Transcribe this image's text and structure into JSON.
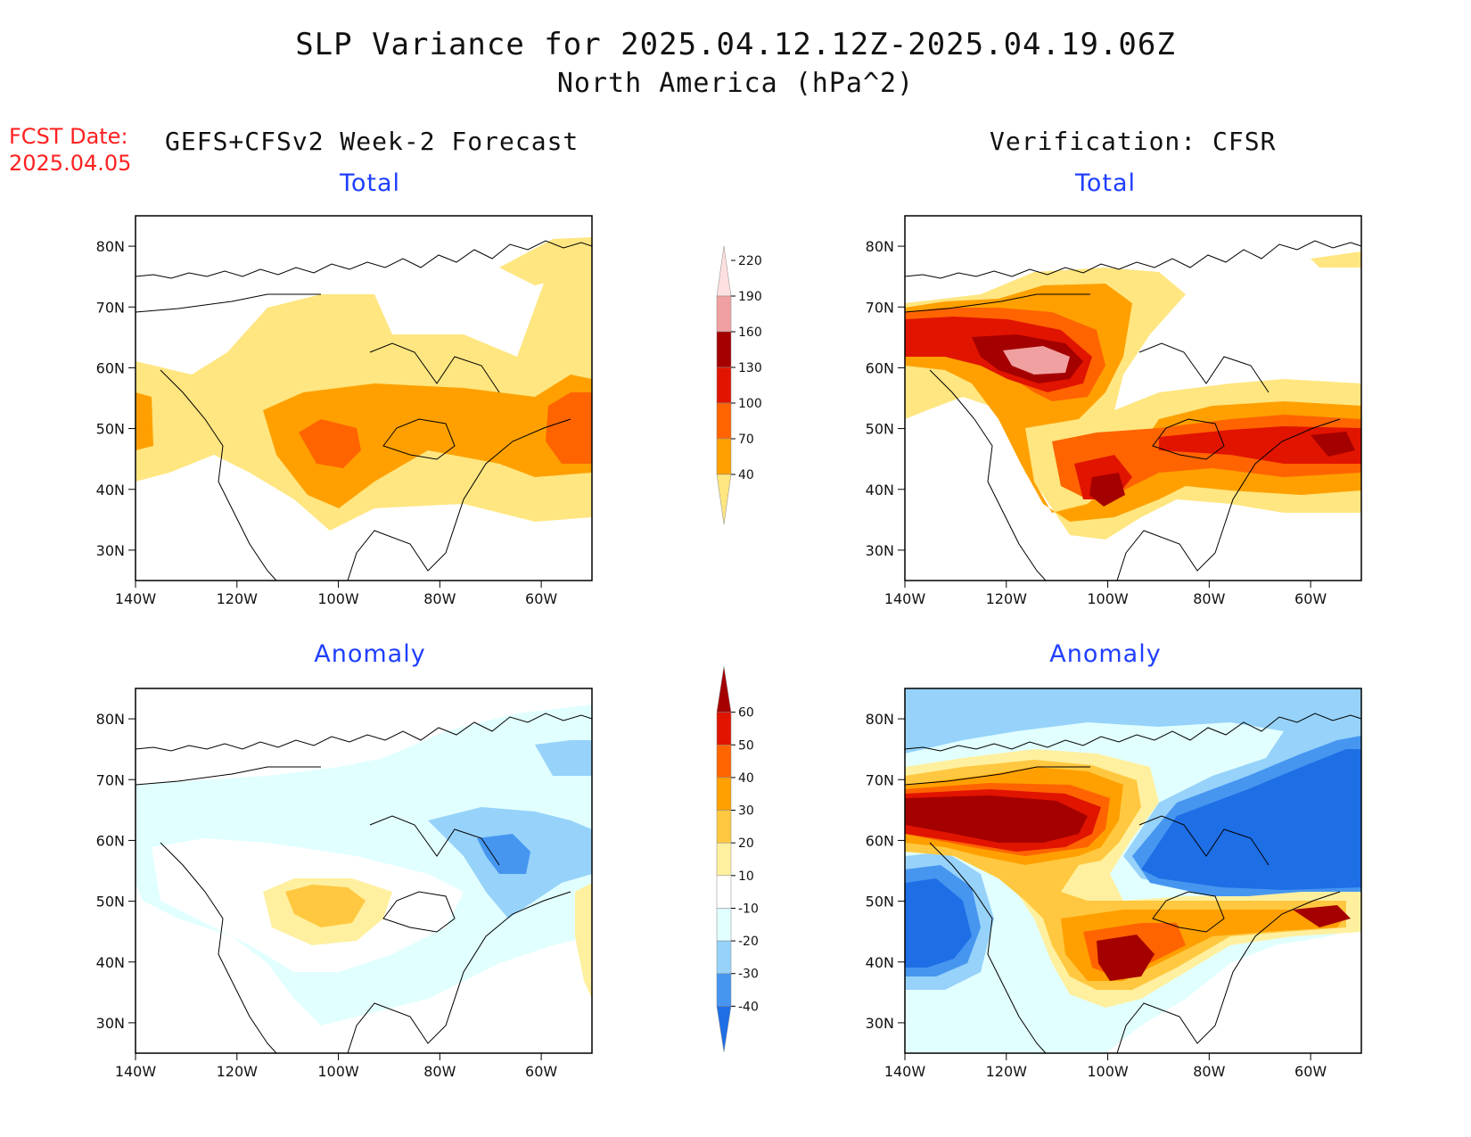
{
  "title": "SLP Variance for 2025.04.12.12Z-2025.04.19.06Z",
  "subtitle": "North America (hPa^2)",
  "fcst": {
    "line1": "FCST Date:",
    "line2": "2025.04.05"
  },
  "left_header": "GEFS+CFSv2 Week-2 Forecast",
  "right_header": "Verification: CFSR",
  "panels": {
    "top_left": {
      "title": "Total"
    },
    "top_right": {
      "title": "Total"
    },
    "bottom_left": {
      "title": "Anomaly"
    },
    "bottom_right": {
      "title": "Anomaly"
    }
  },
  "axes": {
    "lat_labels": [
      "80N",
      "70N",
      "60N",
      "50N",
      "40N",
      "30N"
    ],
    "lon_labels": [
      "140W",
      "120W",
      "100W",
      "80W",
      "60W"
    ],
    "lat_values": [
      80,
      70,
      60,
      50,
      40,
      30
    ],
    "lon_values": [
      -140,
      -120,
      -100,
      -80,
      -60
    ],
    "lat_range": [
      25,
      85
    ],
    "lon_range": [
      -140,
      -50
    ]
  },
  "colorbars": {
    "total": {
      "labels": [
        "40",
        "70",
        "100",
        "130",
        "160",
        "190",
        "220"
      ],
      "colors": [
        "#ffe680",
        "#ffa000",
        "#ff6400",
        "#e11400",
        "#a50000",
        "#f0a0a0",
        "#ffe0e0"
      ]
    },
    "anomaly": {
      "labels": [
        "-40",
        "-30",
        "-20",
        "-10",
        "10",
        "20",
        "30",
        "40",
        "50",
        "60"
      ],
      "colors": [
        "#1e6ee6",
        "#4696f0",
        "#96d2fa",
        "#e1ffff",
        "#ffffff",
        "#fff0a0",
        "#ffc840",
        "#ffa000",
        "#ff6400",
        "#e11400",
        "#a50000"
      ]
    }
  },
  "colors": {
    "title_blue": "#1f3fff",
    "fcst_red": "#ff2020"
  }
}
